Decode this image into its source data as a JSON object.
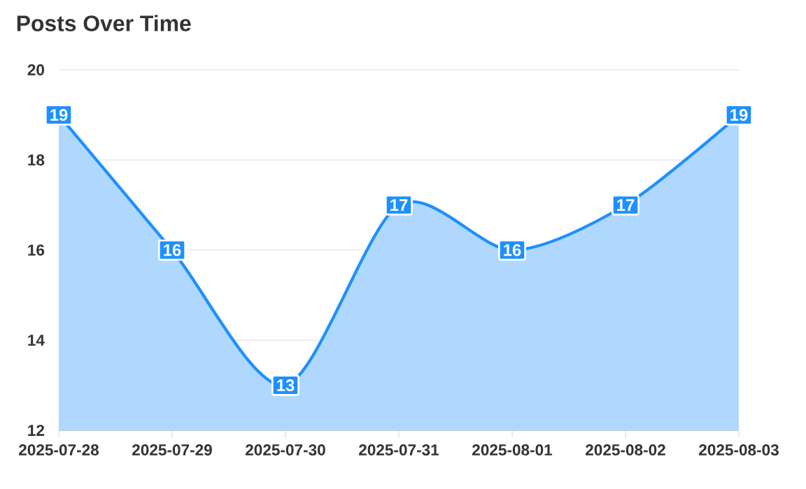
{
  "chart_data": {
    "type": "area",
    "title": "Posts Over Time",
    "categories": [
      "2025-07-28",
      "2025-07-29",
      "2025-07-30",
      "2025-07-31",
      "2025-08-01",
      "2025-08-02",
      "2025-08-03"
    ],
    "values": [
      19,
      16,
      13,
      17,
      16,
      17,
      19
    ],
    "color": "#1e90ff",
    "ylim": [
      12,
      20
    ],
    "yticks": [
      12,
      14,
      16,
      18,
      20
    ],
    "grid": "y",
    "line_style": "solid",
    "data_labels": true
  }
}
